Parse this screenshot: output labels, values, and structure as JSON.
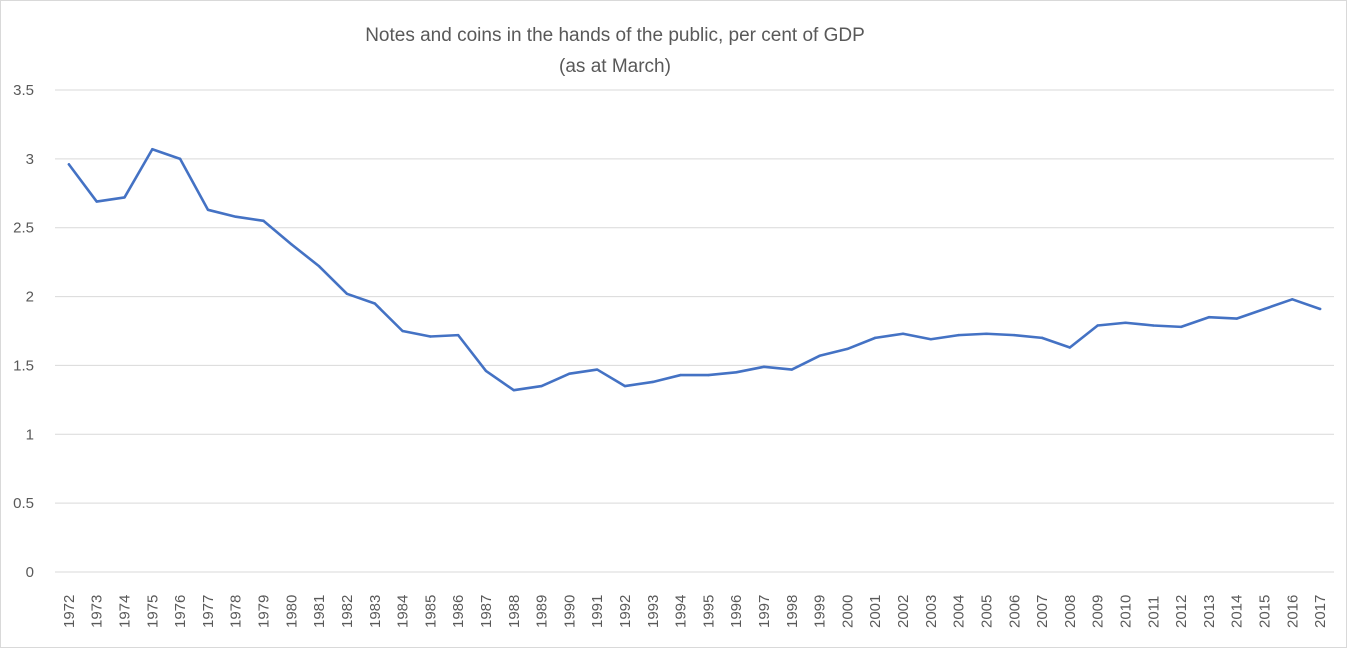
{
  "chart_data": {
    "type": "line",
    "title": "Notes and coins in the hands of the public, per cent of GDP",
    "subtitle": "(as at March)",
    "xlabel": "",
    "ylabel": "",
    "ylim": [
      0,
      3.5
    ],
    "yticks": [
      "0",
      "0.5",
      "1",
      "1.5",
      "2",
      "2.5",
      "3",
      "3.5"
    ],
    "grid": true,
    "legend": "none",
    "categories": [
      "1972",
      "1973",
      "1974",
      "1975",
      "1976",
      "1977",
      "1978",
      "1979",
      "1980",
      "1981",
      "1982",
      "1983",
      "1984",
      "1985",
      "1986",
      "1987",
      "1988",
      "1989",
      "1990",
      "1991",
      "1992",
      "1993",
      "1994",
      "1995",
      "1996",
      "1997",
      "1998",
      "1999",
      "2000",
      "2001",
      "2002",
      "2003",
      "2004",
      "2005",
      "2006",
      "2007",
      "2008",
      "2009",
      "2010",
      "2011",
      "2012",
      "2013",
      "2014",
      "2015",
      "2016",
      "2017"
    ],
    "series": [
      {
        "name": "Notes and coins, % of GDP",
        "color": "#4472c4",
        "values": [
          2.96,
          2.69,
          2.72,
          3.07,
          3.0,
          2.63,
          2.58,
          2.55,
          2.38,
          2.22,
          2.02,
          1.95,
          1.75,
          1.71,
          1.72,
          1.46,
          1.32,
          1.35,
          1.44,
          1.47,
          1.35,
          1.38,
          1.43,
          1.43,
          1.45,
          1.49,
          1.47,
          1.57,
          1.62,
          1.7,
          1.73,
          1.69,
          1.72,
          1.73,
          1.72,
          1.7,
          1.63,
          1.79,
          1.81,
          1.79,
          1.78,
          1.85,
          1.84,
          1.91,
          1.98,
          1.91
        ]
      }
    ]
  }
}
